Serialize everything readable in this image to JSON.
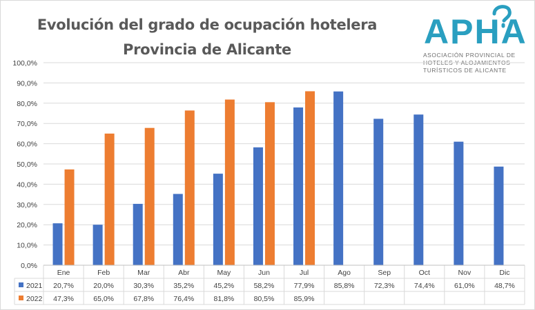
{
  "header": {
    "title_line1": "Evolución del grado de ocupación hotelera",
    "title_line2": "Provincia de Alicante"
  },
  "logo": {
    "text": "APHA",
    "subtitle_lines": [
      "ASOCIACIÓN PROVINCIAL DE",
      "HOTELES Y ALOJAMIENTOS",
      "TURÍSTICOS DE ALICANTE"
    ],
    "color": "#2a9fc0"
  },
  "chart_data": {
    "type": "bar",
    "categories": [
      "Ene",
      "Feb",
      "Mar",
      "Abr",
      "May",
      "Jun",
      "Jul",
      "Ago",
      "Sep",
      "Oct",
      "Nov",
      "Dic"
    ],
    "series": [
      {
        "name": "2021",
        "color": "#4472c4",
        "values": [
          20.7,
          20.0,
          30.3,
          35.2,
          45.2,
          58.2,
          77.9,
          85.8,
          72.3,
          74.4,
          61.0,
          48.7
        ],
        "labels": [
          "20,7%",
          "20,0%",
          "30,3%",
          "35,2%",
          "45,2%",
          "58,2%",
          "77,9%",
          "85,8%",
          "72,3%",
          "74,4%",
          "61,0%",
          "48,7%"
        ]
      },
      {
        "name": "2022",
        "color": "#ed7d31",
        "values": [
          47.3,
          65.0,
          67.8,
          76.4,
          81.8,
          80.5,
          85.9,
          null,
          null,
          null,
          null,
          null
        ],
        "labels": [
          "47,3%",
          "65,0%",
          "67,8%",
          "76,4%",
          "81,8%",
          "80,5%",
          "85,9%",
          "",
          "",
          "",
          "",
          ""
        ]
      }
    ],
    "y_ticks": [
      "0,0%",
      "10,0%",
      "20,0%",
      "30,0%",
      "40,0%",
      "50,0%",
      "60,0%",
      "70,0%",
      "80,0%",
      "90,0%",
      "100,0%"
    ],
    "ylim": [
      0,
      100
    ],
    "grid": true,
    "legend": "data-table"
  }
}
